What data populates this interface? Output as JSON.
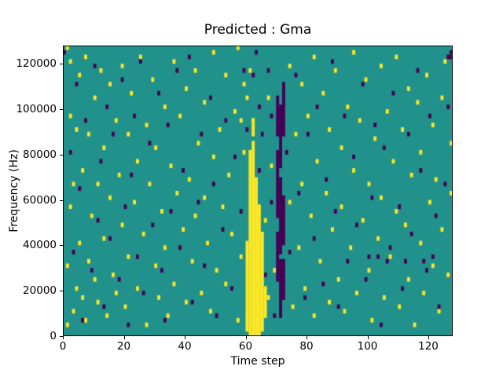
{
  "figure": {
    "background": "#ffffff"
  },
  "chart_data": {
    "type": "heatmap",
    "title": "Predicted : Gma",
    "xlabel": "Time step",
    "ylabel": "Frequency (Hz)",
    "x_range": [
      0,
      128
    ],
    "y_range": [
      0,
      128000
    ],
    "x_ticks": [
      0,
      20,
      40,
      60,
      80,
      100,
      120
    ],
    "y_ticks": [
      0,
      20000,
      40000,
      60000,
      80000,
      100000,
      120000
    ],
    "grid": {
      "cols": 128,
      "rows": 64,
      "y_bin_hz": 2000
    },
    "colors": {
      "background_value": "#21918c",
      "low": "#440154",
      "high": "#fde725"
    },
    "legend": "none",
    "features": [
      "mostly mid-value teal field with sparse single-cell anomalies",
      "solid high-value yellow vertical band near time steps 60-66 from 0 Hz up to about 85000 Hz",
      "broken low-value purple vertical band near time steps 70-72 from about 8000 Hz to 110000 Hz"
    ],
    "yellow_band_segments": [
      [
        60,
        1,
        20
      ],
      [
        61,
        0,
        40
      ],
      [
        62,
        0,
        42
      ],
      [
        63,
        0,
        34
      ],
      [
        64,
        0,
        28
      ],
      [
        65,
        1,
        22
      ],
      [
        66,
        4,
        10
      ],
      [
        62,
        44,
        47
      ]
    ],
    "purple_band_segments": [
      [
        70,
        12,
        22
      ],
      [
        70,
        26,
        40
      ],
      [
        70,
        44,
        52
      ],
      [
        71,
        4,
        16
      ],
      [
        71,
        18,
        34
      ],
      [
        71,
        37,
        50
      ],
      [
        72,
        8,
        16
      ],
      [
        72,
        20,
        30
      ],
      [
        72,
        44,
        55
      ]
    ],
    "yellow_cells": [
      [
        1,
        2
      ],
      [
        1,
        15
      ],
      [
        1,
        63
      ],
      [
        2,
        28
      ],
      [
        2,
        48
      ],
      [
        2,
        60
      ],
      [
        3,
        5
      ],
      [
        3,
        33
      ],
      [
        4,
        10
      ],
      [
        4,
        45
      ],
      [
        5,
        57
      ],
      [
        5,
        20
      ],
      [
        6,
        8
      ],
      [
        6,
        36
      ],
      [
        7,
        61
      ],
      [
        7,
        3
      ],
      [
        8,
        16
      ],
      [
        8,
        44
      ],
      [
        9,
        26
      ],
      [
        10,
        52
      ],
      [
        10,
        12
      ],
      [
        11,
        33
      ],
      [
        11,
        7
      ],
      [
        12,
        58
      ],
      [
        13,
        21
      ],
      [
        13,
        41
      ],
      [
        14,
        4
      ],
      [
        15,
        30
      ],
      [
        15,
        55
      ],
      [
        16,
        13
      ],
      [
        17,
        47
      ],
      [
        17,
        9
      ],
      [
        18,
        35
      ],
      [
        19,
        59
      ],
      [
        19,
        24
      ],
      [
        20,
        6
      ],
      [
        21,
        44
      ],
      [
        21,
        17
      ],
      [
        22,
        53
      ],
      [
        23,
        29
      ],
      [
        24,
        10
      ],
      [
        24,
        38
      ],
      [
        25,
        61
      ],
      [
        26,
        22
      ],
      [
        27,
        46
      ],
      [
        27,
        2
      ],
      [
        28,
        33
      ],
      [
        29,
        56
      ],
      [
        30,
        15
      ],
      [
        30,
        41
      ],
      [
        31,
        8
      ],
      [
        32,
        27
      ],
      [
        33,
        50
      ],
      [
        33,
        19
      ],
      [
        34,
        4
      ],
      [
        35,
        37
      ],
      [
        36,
        60
      ],
      [
        36,
        11
      ],
      [
        37,
        31
      ],
      [
        38,
        48
      ],
      [
        39,
        23
      ],
      [
        40,
        7
      ],
      [
        40,
        54
      ],
      [
        41,
        34
      ],
      [
        42,
        16
      ],
      [
        43,
        58
      ],
      [
        43,
        26
      ],
      [
        44,
        42
      ],
      [
        45,
        9
      ],
      [
        46,
        30
      ],
      [
        46,
        51
      ],
      [
        47,
        20
      ],
      [
        48,
        5
      ],
      [
        49,
        39
      ],
      [
        49,
        62
      ],
      [
        50,
        14
      ],
      [
        51,
        45
      ],
      [
        52,
        28
      ],
      [
        53,
        57
      ],
      [
        53,
        11
      ],
      [
        54,
        35
      ],
      [
        55,
        22
      ],
      [
        56,
        49
      ],
      [
        57,
        3
      ],
      [
        57,
        63
      ],
      [
        58,
        17
      ],
      [
        58,
        47
      ],
      [
        59,
        40
      ],
      [
        59,
        55
      ],
      [
        60,
        52
      ],
      [
        61,
        58
      ],
      [
        62,
        47
      ],
      [
        66,
        25
      ],
      [
        67,
        52
      ],
      [
        67,
        8
      ],
      [
        68,
        37
      ],
      [
        69,
        14
      ],
      [
        74,
        59
      ],
      [
        74,
        29
      ],
      [
        75,
        6
      ],
      [
        76,
        44
      ],
      [
        77,
        19
      ],
      [
        78,
        55
      ],
      [
        78,
        33
      ],
      [
        79,
        10
      ],
      [
        80,
        48
      ],
      [
        81,
        26
      ],
      [
        82,
        61
      ],
      [
        82,
        4
      ],
      [
        83,
        38
      ],
      [
        84,
        16
      ],
      [
        85,
        53
      ],
      [
        86,
        31
      ],
      [
        87,
        7
      ],
      [
        87,
        45
      ],
      [
        88,
        23
      ],
      [
        89,
        58
      ],
      [
        90,
        12
      ],
      [
        91,
        41
      ],
      [
        91,
        28
      ],
      [
        92,
        5
      ],
      [
        93,
        50
      ],
      [
        94,
        19
      ],
      [
        95,
        36
      ],
      [
        95,
        62
      ],
      [
        96,
        9
      ],
      [
        97,
        47
      ],
      [
        98,
        25
      ],
      [
        99,
        56
      ],
      [
        100,
        14
      ],
      [
        100,
        33
      ],
      [
        101,
        3
      ],
      [
        102,
        43
      ],
      [
        103,
        21
      ],
      [
        104,
        59
      ],
      [
        104,
        30
      ],
      [
        105,
        8
      ],
      [
        106,
        49
      ],
      [
        107,
        17
      ],
      [
        108,
        38
      ],
      [
        109,
        61
      ],
      [
        109,
        27
      ],
      [
        110,
        6
      ],
      [
        111,
        45
      ],
      [
        112,
        24
      ],
      [
        113,
        54
      ],
      [
        113,
        12
      ],
      [
        114,
        35
      ],
      [
        115,
        2
      ],
      [
        116,
        51
      ],
      [
        117,
        20
      ],
      [
        117,
        40
      ],
      [
        118,
        9
      ],
      [
        119,
        57
      ],
      [
        120,
        29
      ],
      [
        121,
        46
      ],
      [
        121,
        15
      ],
      [
        122,
        34
      ],
      [
        123,
        5
      ],
      [
        124,
        52
      ],
      [
        124,
        23
      ],
      [
        125,
        60
      ],
      [
        126,
        13
      ],
      [
        127,
        42
      ],
      [
        127,
        31
      ]
    ],
    "purple_cells": [
      [
        0,
        62
      ],
      [
        2,
        40
      ],
      [
        3,
        18
      ],
      [
        4,
        55
      ],
      [
        5,
        32
      ],
      [
        6,
        3
      ],
      [
        7,
        47
      ],
      [
        9,
        14
      ],
      [
        10,
        59
      ],
      [
        11,
        25
      ],
      [
        12,
        38
      ],
      [
        13,
        6
      ],
      [
        14,
        50
      ],
      [
        15,
        21
      ],
      [
        16,
        44
      ],
      [
        18,
        12
      ],
      [
        19,
        56
      ],
      [
        20,
        28
      ],
      [
        21,
        2
      ],
      [
        22,
        35
      ],
      [
        23,
        48
      ],
      [
        24,
        17
      ],
      [
        25,
        60
      ],
      [
        26,
        9
      ],
      [
        28,
        42
      ],
      [
        29,
        24
      ],
      [
        31,
        53
      ],
      [
        32,
        14
      ],
      [
        33,
        3
      ],
      [
        34,
        46
      ],
      [
        35,
        27
      ],
      [
        37,
        58
      ],
      [
        38,
        19
      ],
      [
        39,
        36
      ],
      [
        41,
        61
      ],
      [
        42,
        7
      ],
      [
        44,
        29
      ],
      [
        45,
        44
      ],
      [
        46,
        15
      ],
      [
        48,
        52
      ],
      [
        49,
        33
      ],
      [
        50,
        4
      ],
      [
        52,
        23
      ],
      [
        53,
        47
      ],
      [
        55,
        10
      ],
      [
        56,
        39
      ],
      [
        58,
        27
      ],
      [
        59,
        58
      ],
      [
        60,
        45
      ],
      [
        62,
        57
      ],
      [
        63,
        62
      ],
      [
        64,
        36
      ],
      [
        64,
        50
      ],
      [
        65,
        44
      ],
      [
        66,
        13
      ],
      [
        67,
        58
      ],
      [
        68,
        29
      ],
      [
        68,
        48
      ],
      [
        69,
        4
      ],
      [
        73,
        40
      ],
      [
        74,
        18
      ],
      [
        76,
        57
      ],
      [
        77,
        31
      ],
      [
        79,
        8
      ],
      [
        80,
        44
      ],
      [
        82,
        21
      ],
      [
        83,
        50
      ],
      [
        85,
        11
      ],
      [
        86,
        34
      ],
      [
        88,
        60
      ],
      [
        89,
        27
      ],
      [
        90,
        6
      ],
      [
        92,
        48
      ],
      [
        93,
        16
      ],
      [
        95,
        39
      ],
      [
        96,
        24
      ],
      [
        98,
        55
      ],
      [
        99,
        12
      ],
      [
        101,
        30
      ],
      [
        102,
        46
      ],
      [
        104,
        2
      ],
      [
        105,
        41
      ],
      [
        107,
        19
      ],
      [
        108,
        53
      ],
      [
        110,
        28
      ],
      [
        111,
        10
      ],
      [
        113,
        44
      ],
      [
        114,
        22
      ],
      [
        116,
        58
      ],
      [
        117,
        36
      ],
      [
        119,
        14
      ],
      [
        120,
        48
      ],
      [
        122,
        26
      ],
      [
        123,
        6
      ],
      [
        125,
        33
      ],
      [
        126,
        50
      ],
      [
        126,
        61
      ],
      [
        127,
        61
      ],
      [
        127,
        62
      ],
      [
        100,
        17
      ],
      [
        103,
        17
      ],
      [
        106,
        16
      ],
      [
        112,
        16
      ],
      [
        118,
        16
      ],
      [
        121,
        17
      ]
    ]
  }
}
